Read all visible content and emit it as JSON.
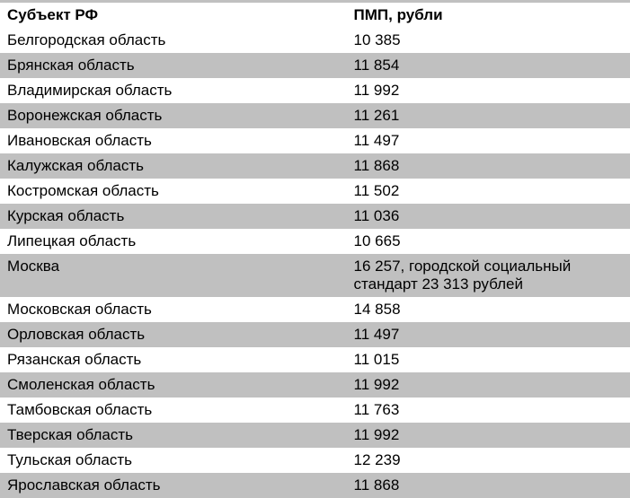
{
  "table": {
    "columns": [
      "Субъект РФ",
      "ПМП, рубли"
    ],
    "column_widths": [
      "55%",
      "45%"
    ],
    "header_bg": "#ffffff",
    "odd_bg": "#ffffff",
    "even_bg": "#c0c0c0",
    "font_size": 17,
    "font_family": "Arial",
    "rows": [
      {
        "region": "Белгородская область",
        "value": "10 385"
      },
      {
        "region": "Брянская область",
        "value": "11 854"
      },
      {
        "region": "Владимирская область",
        "value": "11 992"
      },
      {
        "region": "Воронежская область",
        "value": "11 261"
      },
      {
        "region": "Ивановская область",
        "value": "11 497"
      },
      {
        "region": "Калужская область",
        "value": "11 868"
      },
      {
        "region": "Костромская область",
        "value": "11 502"
      },
      {
        "region": "Курская область",
        "value": "11 036"
      },
      {
        "region": "Липецкая область",
        "value": "10 665"
      },
      {
        "region": "Москва",
        "value": "16 257, городской социальный стандарт 23 313 рублей"
      },
      {
        "region": "Московская область",
        "value": "14 858"
      },
      {
        "region": "Орловская область",
        "value": "11 497"
      },
      {
        "region": "Рязанская область",
        "value": "11 015"
      },
      {
        "region": "Смоленская область",
        "value": "11 992"
      },
      {
        "region": "Тамбовская область",
        "value": "11 763"
      },
      {
        "region": "Тверская область",
        "value": "11 992"
      },
      {
        "region": "Тульская область",
        "value": "12 239"
      },
      {
        "region": "Ярославская область",
        "value": "11 868"
      }
    ]
  }
}
